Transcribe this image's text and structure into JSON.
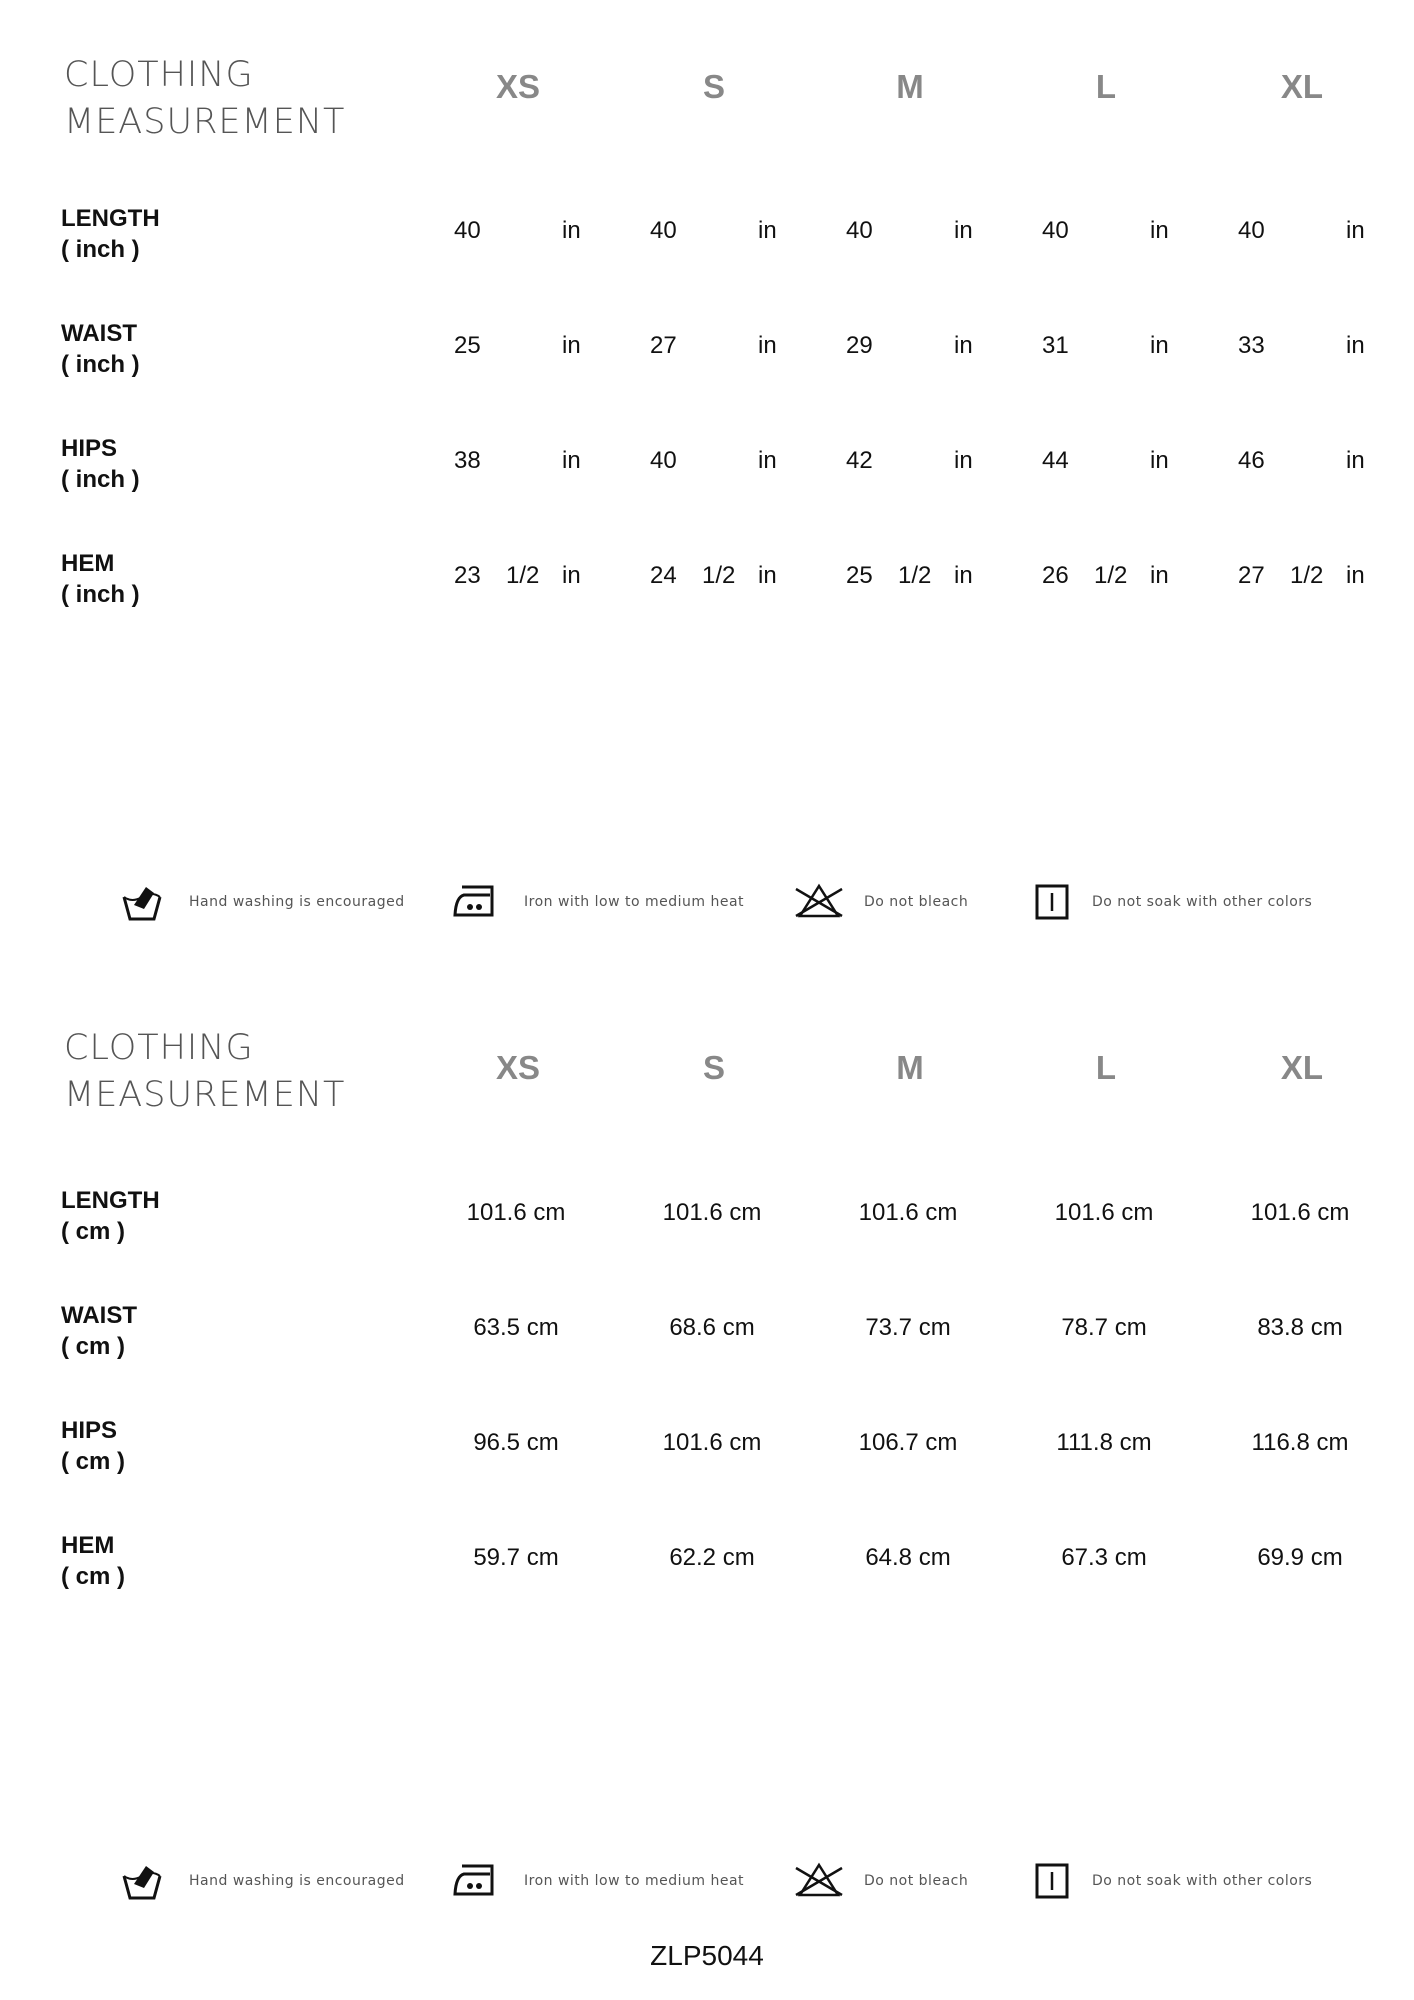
{
  "sections": [
    {
      "title_line1": "CLOTHING",
      "title_line2": "MEASUREMENT",
      "sizes": [
        "XS",
        "S",
        "M",
        "L",
        "XL"
      ],
      "unit_type": "inch",
      "rows": [
        {
          "label": "LENGTH",
          "sub": "( inch )",
          "values": [
            [
              "40",
              "",
              "in"
            ],
            [
              "40",
              "",
              "in"
            ],
            [
              "40",
              "",
              "in"
            ],
            [
              "40",
              "",
              "in"
            ],
            [
              "40",
              "",
              "in"
            ]
          ]
        },
        {
          "label": "WAIST",
          "sub": "( inch )",
          "values": [
            [
              "25",
              "",
              "in"
            ],
            [
              "27",
              "",
              "in"
            ],
            [
              "29",
              "",
              "in"
            ],
            [
              "31",
              "",
              "in"
            ],
            [
              "33",
              "",
              "in"
            ]
          ]
        },
        {
          "label": "HIPS",
          "sub": "( inch )",
          "values": [
            [
              "38",
              "",
              "in"
            ],
            [
              "40",
              "",
              "in"
            ],
            [
              "42",
              "",
              "in"
            ],
            [
              "44",
              "",
              "in"
            ],
            [
              "46",
              "",
              "in"
            ]
          ]
        },
        {
          "label": "HEM",
          "sub": "( inch )",
          "values": [
            [
              "23",
              "1/2",
              "in"
            ],
            [
              "24",
              "1/2",
              "in"
            ],
            [
              "25",
              "1/2",
              "in"
            ],
            [
              "26",
              "1/2",
              "in"
            ],
            [
              "27",
              "1/2",
              "in"
            ]
          ]
        }
      ]
    },
    {
      "title_line1": "CLOTHING",
      "title_line2": "MEASUREMENT",
      "sizes": [
        "XS",
        "S",
        "M",
        "L",
        "XL"
      ],
      "unit_type": "cm",
      "rows": [
        {
          "label": "LENGTH",
          "sub": "( cm )",
          "values": [
            "101.6 cm",
            "101.6 cm",
            "101.6 cm",
            "101.6 cm",
            "101.6 cm"
          ]
        },
        {
          "label": "WAIST",
          "sub": "( cm )",
          "values": [
            "63.5 cm",
            "68.6 cm",
            "73.7 cm",
            "78.7 cm",
            "83.8 cm"
          ]
        },
        {
          "label": "HIPS",
          "sub": "( cm )",
          "values": [
            "96.5 cm",
            "101.6 cm",
            "106.7 cm",
            "111.8 cm",
            "116.8 cm"
          ]
        },
        {
          "label": "HEM",
          "sub": "( cm )",
          "values": [
            "59.7 cm",
            "62.2 cm",
            "64.8 cm",
            "67.3 cm",
            "69.9 cm"
          ]
        }
      ]
    }
  ],
  "care": [
    {
      "icon": "hand-wash-icon",
      "text": "Hand washing is encouraged"
    },
    {
      "icon": "iron-low-medium-icon",
      "text": "Iron with low to medium heat"
    },
    {
      "icon": "do-not-bleach-icon",
      "text": "Do not bleach"
    },
    {
      "icon": "do-not-soak-icon",
      "text": "Do not soak with other colors"
    }
  ],
  "footer": "ZLP5044",
  "colors": {
    "title": "#555555",
    "size_header": "#888888",
    "text": "#111111"
  }
}
